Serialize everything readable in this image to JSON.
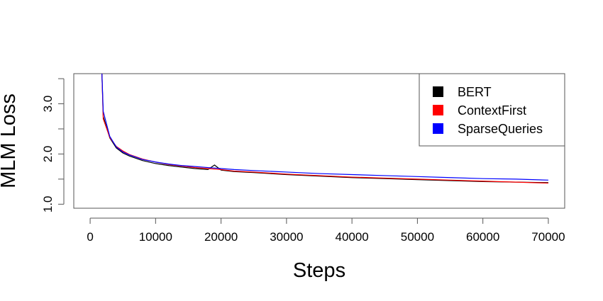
{
  "chart_data": {
    "type": "line",
    "title": "",
    "xlabel": "Steps",
    "ylabel": "MLM Loss",
    "xlim": [
      -2500,
      72500
    ],
    "ylim": [
      0.92,
      3.6
    ],
    "x_ticks": [
      0,
      10000,
      20000,
      30000,
      40000,
      50000,
      60000,
      70000
    ],
    "y_ticks": [
      1.0,
      2.0,
      3.0
    ],
    "x_tick_labels": [
      "0",
      "10000",
      "20000",
      "30000",
      "40000",
      "50000",
      "60000",
      "70000"
    ],
    "y_tick_labels": [
      "1.0",
      "2.0",
      "3.0"
    ],
    "grid": false,
    "legend_position": "top-right",
    "series": [
      {
        "name": "BERT",
        "color": "#000000",
        "x": [
          1800,
          2000,
          3000,
          4000,
          5000,
          6000,
          8000,
          10000,
          12000,
          14000,
          16000,
          18000,
          19000,
          20000,
          22000,
          25000,
          30000,
          35000,
          40000,
          45000,
          50000,
          55000,
          60000,
          65000,
          70000
        ],
        "y": [
          3.6,
          2.75,
          2.32,
          2.12,
          2.02,
          1.96,
          1.87,
          1.81,
          1.77,
          1.74,
          1.71,
          1.69,
          1.78,
          1.68,
          1.65,
          1.63,
          1.59,
          1.56,
          1.53,
          1.51,
          1.49,
          1.47,
          1.45,
          1.44,
          1.43
        ]
      },
      {
        "name": "ContextFirst",
        "color": "#ff0000",
        "x": [
          1800,
          2000,
          3000,
          4000,
          5000,
          6000,
          8000,
          10000,
          12000,
          14000,
          16000,
          18000,
          20000,
          22000,
          25000,
          30000,
          35000,
          40000,
          45000,
          50000,
          55000,
          60000,
          65000,
          70000
        ],
        "y": [
          3.6,
          2.7,
          2.33,
          2.15,
          2.06,
          1.99,
          1.9,
          1.84,
          1.79,
          1.76,
          1.73,
          1.71,
          1.69,
          1.66,
          1.64,
          1.6,
          1.57,
          1.54,
          1.52,
          1.5,
          1.48,
          1.46,
          1.44,
          1.42
        ]
      },
      {
        "name": "SparseQueries",
        "color": "#0000ff",
        "x": [
          1800,
          2000,
          3000,
          4000,
          5000,
          6000,
          8000,
          10000,
          12000,
          14000,
          16000,
          18000,
          20000,
          22000,
          25000,
          30000,
          35000,
          40000,
          45000,
          50000,
          55000,
          60000,
          65000,
          70000
        ],
        "y": [
          3.6,
          2.85,
          2.35,
          2.14,
          2.04,
          1.98,
          1.89,
          1.84,
          1.8,
          1.77,
          1.75,
          1.73,
          1.71,
          1.69,
          1.67,
          1.64,
          1.61,
          1.59,
          1.57,
          1.55,
          1.53,
          1.51,
          1.5,
          1.48
        ]
      }
    ]
  }
}
